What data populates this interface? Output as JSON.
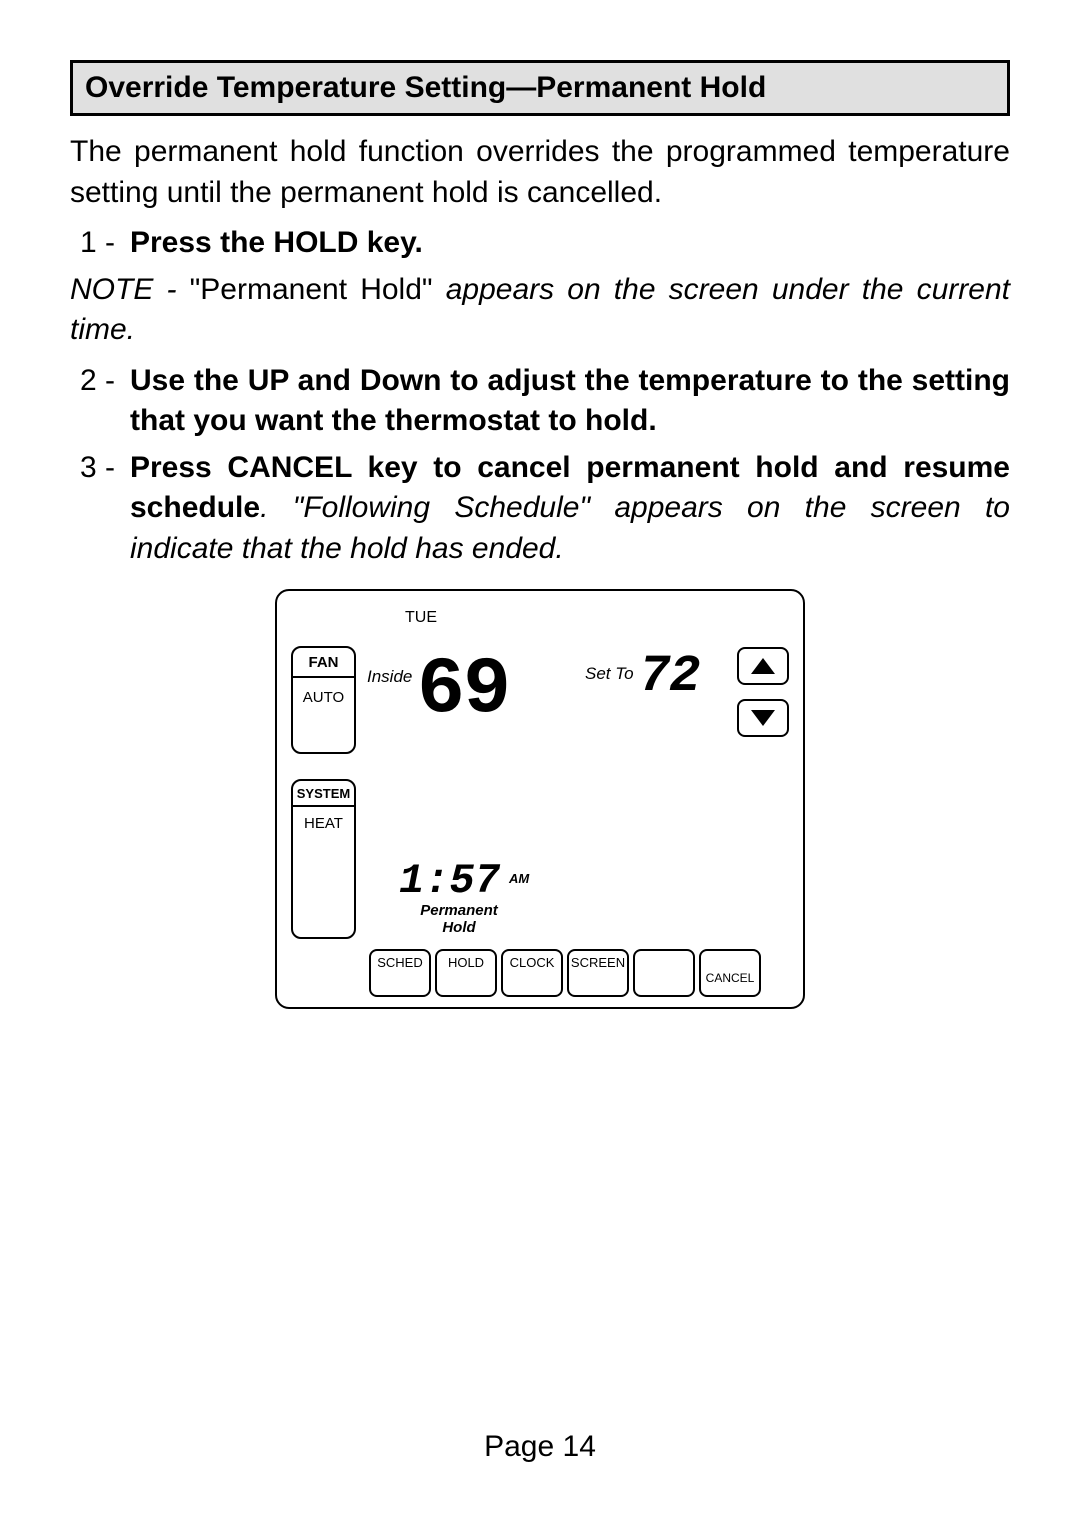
{
  "title": "Override Temperature Setting—Permanent Hold",
  "intro": "The permanent hold function overrides the programmed temperature setting until the permanent hold is cancelled.",
  "steps": [
    {
      "num": "1 -",
      "bold": "Press the HOLD key.",
      "rest": ""
    },
    {
      "num": "2 -",
      "bold": "Use the UP and Down to adjust the temperature to the setting that you want the thermostat to hold.",
      "rest": ""
    },
    {
      "num": "3 -",
      "bold": "Press CANCEL key to cancel permanent hold and resume schedule",
      "rest": ". \"Following Schedule\" appears on the screen to indicate that the hold has ended."
    }
  ],
  "note_prefix": "NOTE - ",
  "note_quoted": "\"Permanent Hold\"",
  "note_rest": " appears on the screen under the current time.",
  "thermostat": {
    "day": "TUE",
    "fan_label": "FAN",
    "fan_value": "AUTO",
    "system_label": "SYSTEM",
    "system_value": "HEAT",
    "inside_label": "Inside",
    "setto_label": "Set To",
    "inside_temp": "69",
    "set_temp": "72",
    "time": "1:57",
    "ampm": "AM",
    "hold_line1": "Permanent",
    "hold_line2": "Hold",
    "buttons": {
      "sched": "SCHED",
      "hold": "HOLD",
      "clock": "CLOCK",
      "screen": "SCREEN",
      "blank": "",
      "cancel": "CANCEL"
    }
  },
  "page_label": "Page 14"
}
